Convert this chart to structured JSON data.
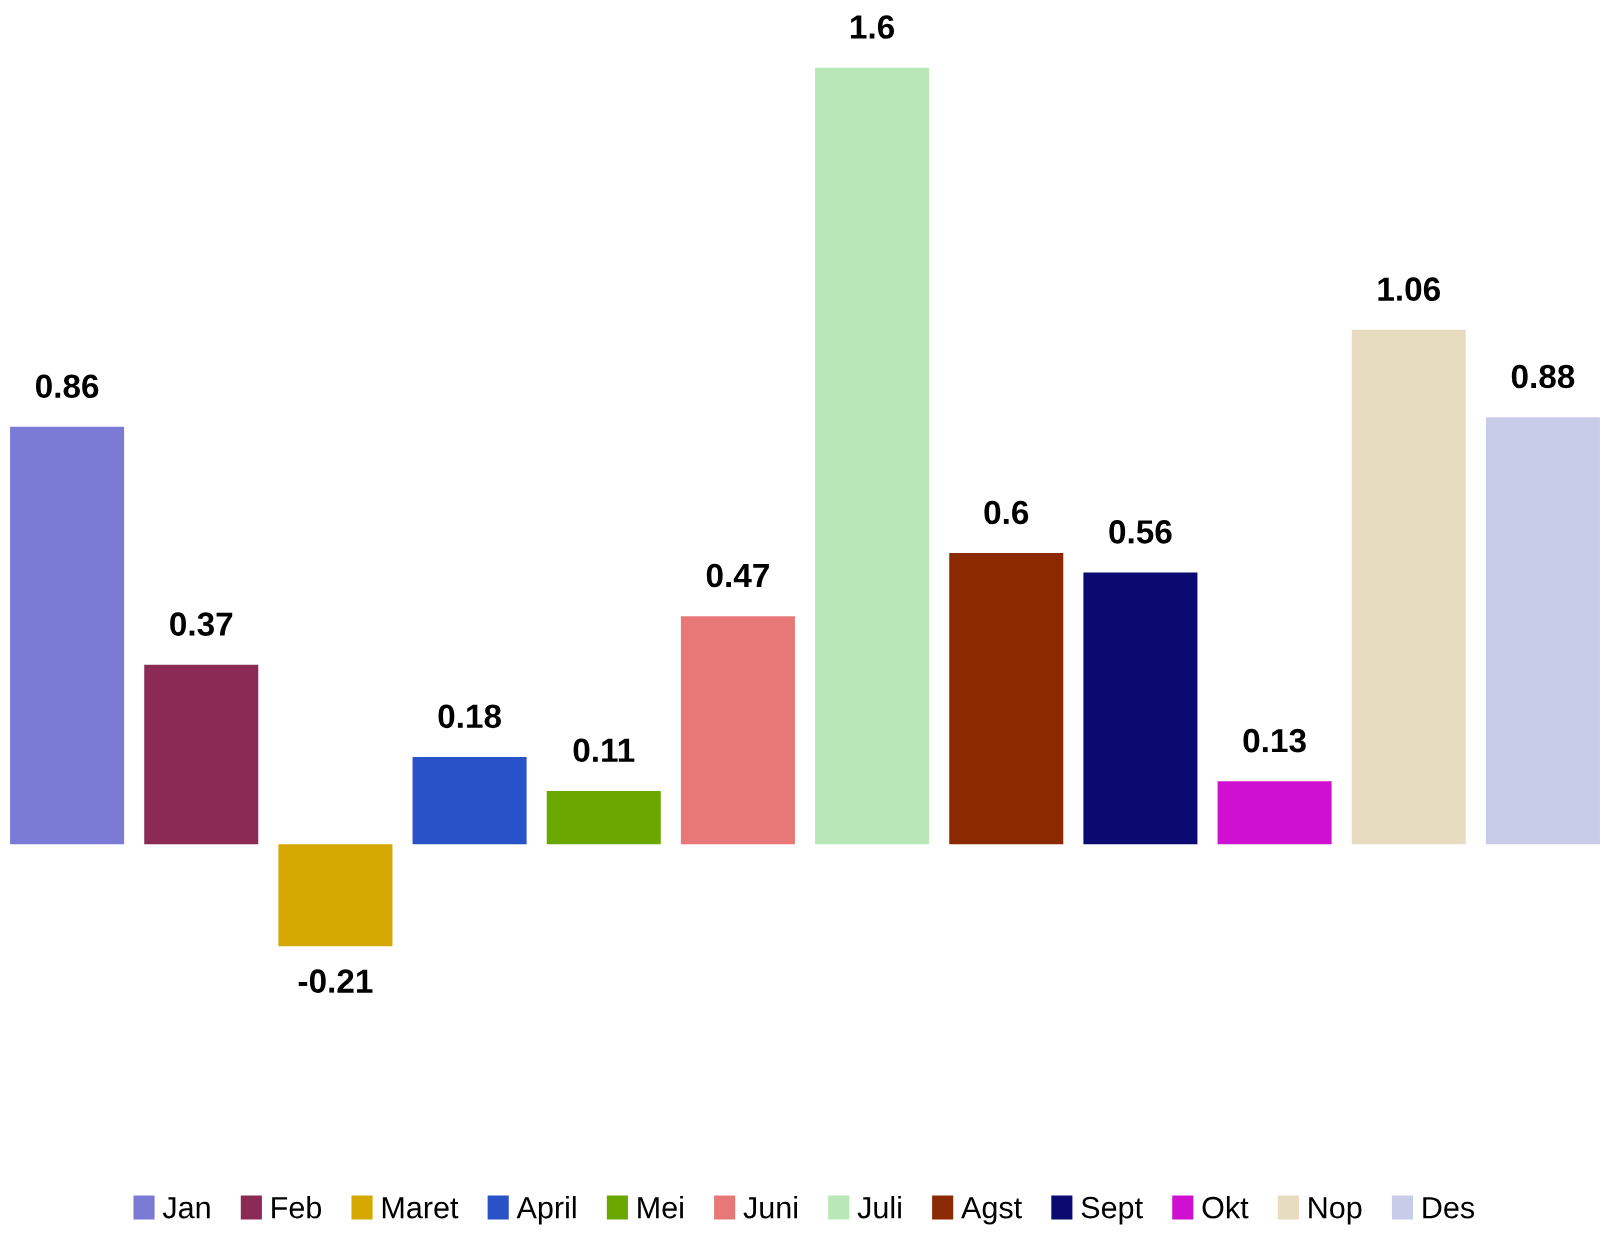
{
  "chart_data": {
    "type": "bar",
    "categories": [
      null
    ],
    "series": [
      {
        "name": "Jan",
        "color": "#7b7bd6",
        "values": [
          0.86
        ]
      },
      {
        "name": "Feb",
        "color": "#8b2a55",
        "values": [
          0.37
        ]
      },
      {
        "name": "Maret",
        "color": "#d4a800",
        "values": [
          -0.21
        ]
      },
      {
        "name": "April",
        "color": "#2a52c8",
        "values": [
          0.18
        ]
      },
      {
        "name": "Mei",
        "color": "#6aa800",
        "values": [
          0.11
        ]
      },
      {
        "name": "Juni",
        "color": "#e87878",
        "values": [
          0.47
        ]
      },
      {
        "name": "Juli",
        "color": "#b8e8b8",
        "values": [
          1.6
        ]
      },
      {
        "name": "Agst",
        "color": "#8b2a00",
        "values": [
          0.6
        ]
      },
      {
        "name": "Sept",
        "color": "#0a0a70",
        "values": [
          0.56
        ]
      },
      {
        "name": "Okt",
        "color": "#d010d0",
        "values": [
          0.13
        ]
      },
      {
        "name": "Nop",
        "color": "#e8dcc0",
        "values": [
          1.06
        ]
      },
      {
        "name": "Des",
        "color": "#c8cce8",
        "values": [
          0.88
        ]
      }
    ],
    "data_labels": true,
    "legend": "bottom",
    "grid": false
  }
}
